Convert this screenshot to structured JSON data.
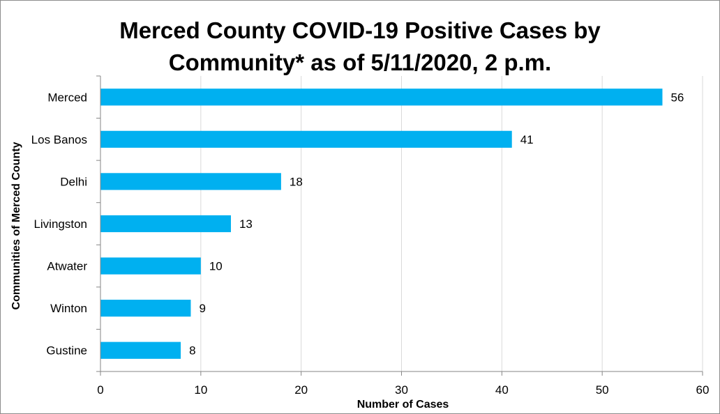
{
  "chart_data": {
    "type": "bar",
    "orientation": "horizontal",
    "title": "Merced County COVID-19 Positive Cases by Community* as of 5/11/2020, 2 p.m.",
    "title_lines": [
      "Merced County COVID-19 Positive Cases by",
      "Community* as of 5/11/2020, 2 p.m."
    ],
    "categories": [
      "Merced",
      "Los Banos",
      "Delhi",
      "Livingston",
      "Atwater",
      "Winton",
      "Gustine"
    ],
    "values": [
      56,
      41,
      18,
      13,
      10,
      9,
      8
    ],
    "xlabel": "Number of Cases",
    "ylabel": "Communities of Merced County",
    "xlim": [
      0,
      60
    ],
    "xticks": [
      0,
      10,
      20,
      30,
      40,
      50,
      60
    ],
    "grid": true,
    "data_labels": true,
    "bar_color": "#00b0f0",
    "grid_color": "#d9d9d9"
  }
}
